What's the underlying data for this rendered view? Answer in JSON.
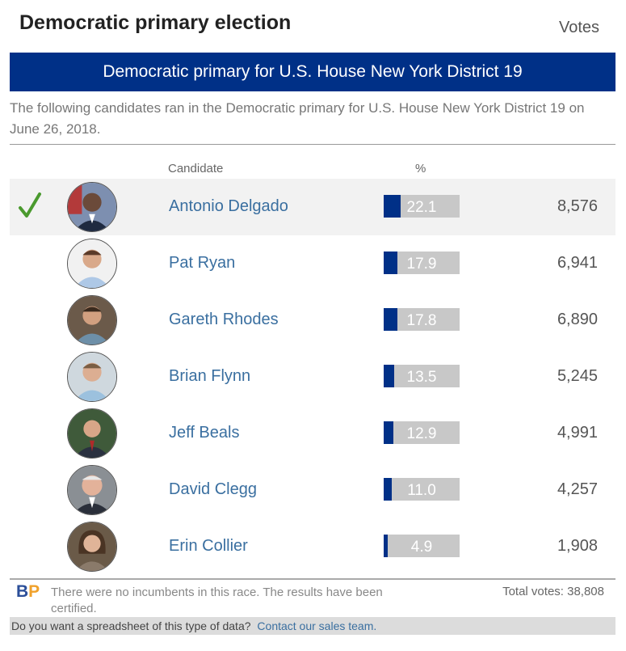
{
  "page": {
    "heading": "Democratic primary election",
    "banner": "Democratic primary for U.S. House New York District 19",
    "intro": "The following candidates ran in the Democratic primary for U.S. House New York District 19 on June 26, 2018."
  },
  "columns": {
    "candidate": "Candidate",
    "percent": "%",
    "votes": "Votes"
  },
  "colors": {
    "navy": "#003087",
    "bar_bg": "#c8c8c8",
    "winner_check": "#4a9a2e",
    "link": "#3a6fa0"
  },
  "candidates": [
    {
      "name": "Antonio Delgado",
      "percent": "22.1",
      "pct_value": 22.1,
      "votes": "8,576",
      "winner": true,
      "icon": "candidate-photo"
    },
    {
      "name": "Pat Ryan",
      "percent": "17.9",
      "pct_value": 17.9,
      "votes": "6,941",
      "winner": false,
      "icon": "candidate-photo"
    },
    {
      "name": "Gareth Rhodes",
      "percent": "17.8",
      "pct_value": 17.8,
      "votes": "6,890",
      "winner": false,
      "icon": "candidate-photo"
    },
    {
      "name": "Brian Flynn",
      "percent": "13.5",
      "pct_value": 13.5,
      "votes": "5,245",
      "winner": false,
      "icon": "candidate-photo"
    },
    {
      "name": "Jeff Beals",
      "percent": "12.9",
      "pct_value": 12.9,
      "votes": "4,991",
      "winner": false,
      "icon": "candidate-photo"
    },
    {
      "name": "David Clegg",
      "percent": "11.0",
      "pct_value": 11.0,
      "votes": "4,257",
      "winner": false,
      "icon": "candidate-photo"
    },
    {
      "name": "Erin Collier",
      "percent": "4.9",
      "pct_value": 4.9,
      "votes": "1,908",
      "winner": false,
      "icon": "candidate-photo"
    }
  ],
  "footer": {
    "logo_b": "B",
    "logo_p": "P",
    "note": "There were no incumbents in this race. The results have been certified.",
    "total_votes": "Total votes: 38,808",
    "spreadsheet_text": "Do you want a spreadsheet of this type of data?",
    "contact_link": "Contact our sales team."
  }
}
